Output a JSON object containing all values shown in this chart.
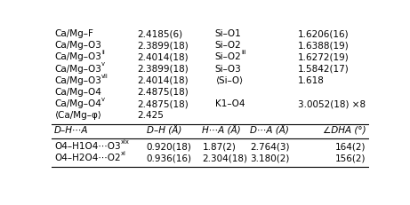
{
  "left_col": [
    [
      "Ca/Mg–F",
      "2.4185(6)"
    ],
    [
      "Ca/Mg–O3",
      "2.3899(18)"
    ],
    [
      "Ca/Mg–O3",
      "2.4014(18)",
      "ii"
    ],
    [
      "Ca/Mg–O3",
      "2.3899(18)",
      "v"
    ],
    [
      "Ca/Mg–O3",
      "2.4014(18)",
      "vii"
    ],
    [
      "Ca/Mg–O4",
      "2.4875(18)"
    ],
    [
      "Ca/Mg–O4",
      "2.4875(18)",
      "v"
    ],
    [
      "⟨Ca/Mg–φ⟩",
      "2.425"
    ]
  ],
  "right_col": [
    [
      "Si–O1",
      "1.6206(16)"
    ],
    [
      "Si–O2",
      "1.6388(19)"
    ],
    [
      "Si–O2",
      "1.6272(19)",
      "iii"
    ],
    [
      "Si–O3",
      "1.5842(17)"
    ],
    [
      "⟨Si–O⟩",
      "1.618"
    ],
    [
      "",
      ""
    ],
    [
      "K1–O4",
      "3.0052(18) ×8"
    ],
    [
      "",
      ""
    ]
  ],
  "hbond_header": [
    "D–H⋯A",
    "D–H (Å)",
    "H⋯A (Å)",
    "D⋯A (Å)",
    "∠DHA (°)"
  ],
  "hbond_rows": [
    [
      "O4–H1O4⋯O3",
      "xix",
      "0.920(18)",
      "1.87(2)",
      "2.764(3)",
      "164(2)"
    ],
    [
      "O4–H2O4⋯O2",
      "xi",
      "0.936(16)",
      "2.304(18)",
      "3.180(2)",
      "156(2)"
    ]
  ],
  "bg_color": "#ffffff",
  "text_color": "#000000",
  "font_size": 7.5
}
